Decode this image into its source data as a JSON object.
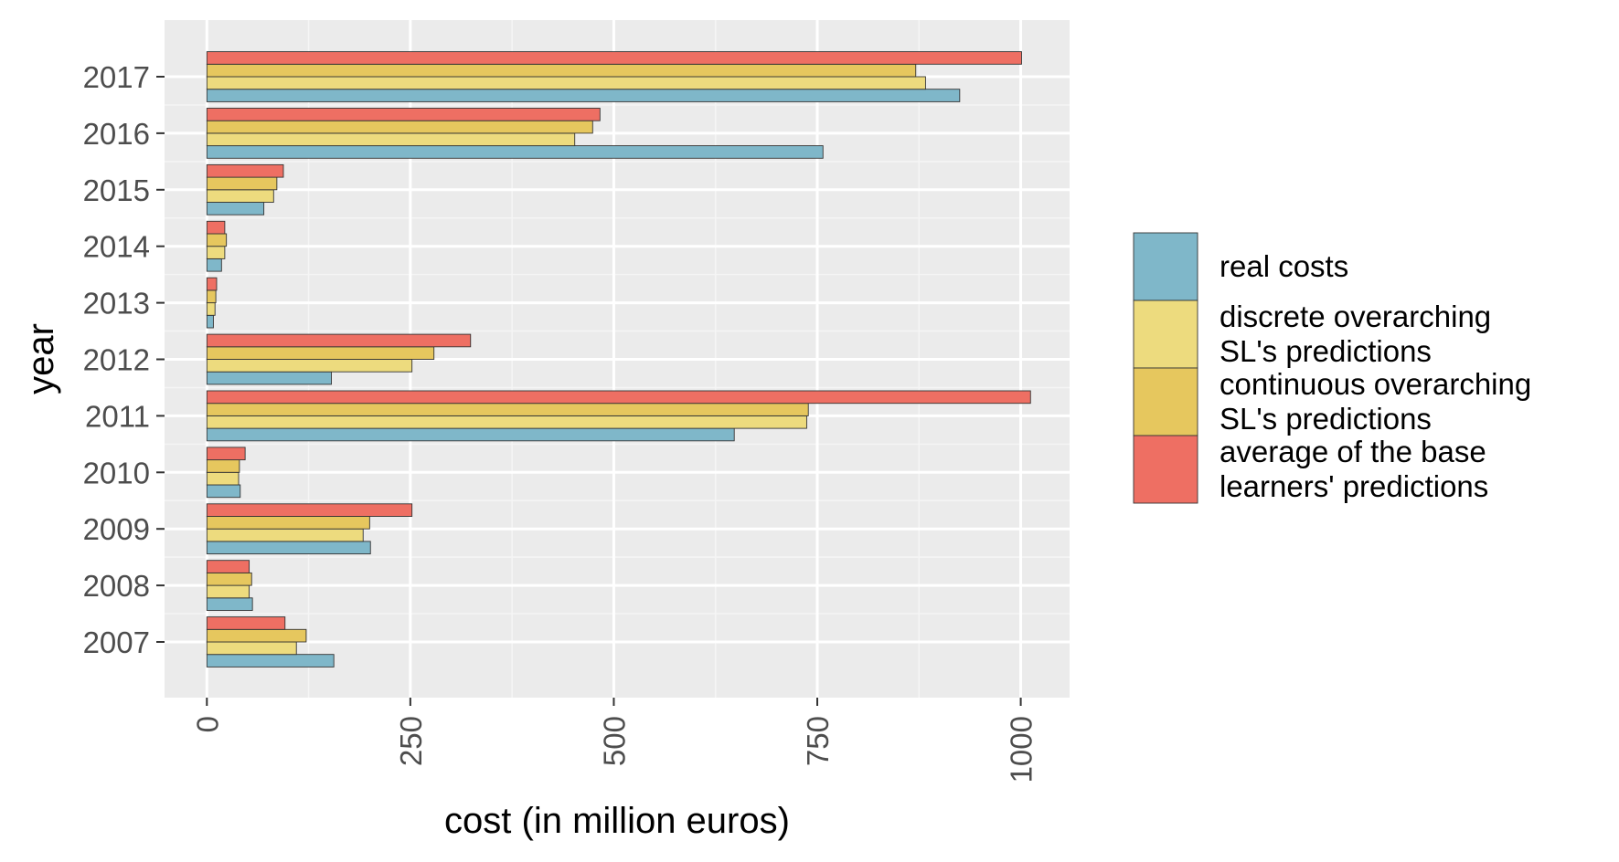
{
  "chart_data": {
    "type": "bar",
    "orientation": "horizontal",
    "categories": [
      "2007",
      "2008",
      "2009",
      "2010",
      "2011",
      "2012",
      "2013",
      "2014",
      "2015",
      "2016",
      "2017"
    ],
    "series": [
      {
        "name": "real costs",
        "color": "#7FB7C9",
        "values": [
          156,
          56,
          201,
          41,
          648,
          153,
          8,
          18,
          70,
          757,
          925
        ]
      },
      {
        "name": "discrete overarching SL's predictions",
        "legend_lines": [
          "discrete overarching",
          "SL's predictions"
        ],
        "color": "#EDDB7E",
        "values": [
          110,
          52,
          192,
          39,
          737,
          252,
          10,
          22,
          82,
          452,
          883
        ]
      },
      {
        "name": "continuous overarching SL's predictions",
        "legend_lines": [
          "continuous overarching",
          "SL's predictions"
        ],
        "color": "#E6C75E",
        "values": [
          122,
          55,
          200,
          40,
          739,
          279,
          11,
          24,
          86,
          474,
          871
        ]
      },
      {
        "name": "average of the base learners' predictions",
        "legend_lines": [
          "average of the base",
          "learners' predictions"
        ],
        "color": "#EE6F63",
        "values": [
          96,
          52,
          252,
          47,
          1012,
          324,
          12,
          22,
          94,
          483,
          1001
        ]
      }
    ],
    "x_ticks": [
      "0",
      "250",
      "500",
      "750",
      "1000"
    ],
    "x_tick_values": [
      0,
      250,
      500,
      750,
      1000
    ],
    "xlim": [
      -52,
      1060
    ],
    "xlabel": "cost (in million euros)",
    "ylabel": "year",
    "grid": true,
    "panel_background": "#EBEBEB",
    "legend_position": "right"
  }
}
